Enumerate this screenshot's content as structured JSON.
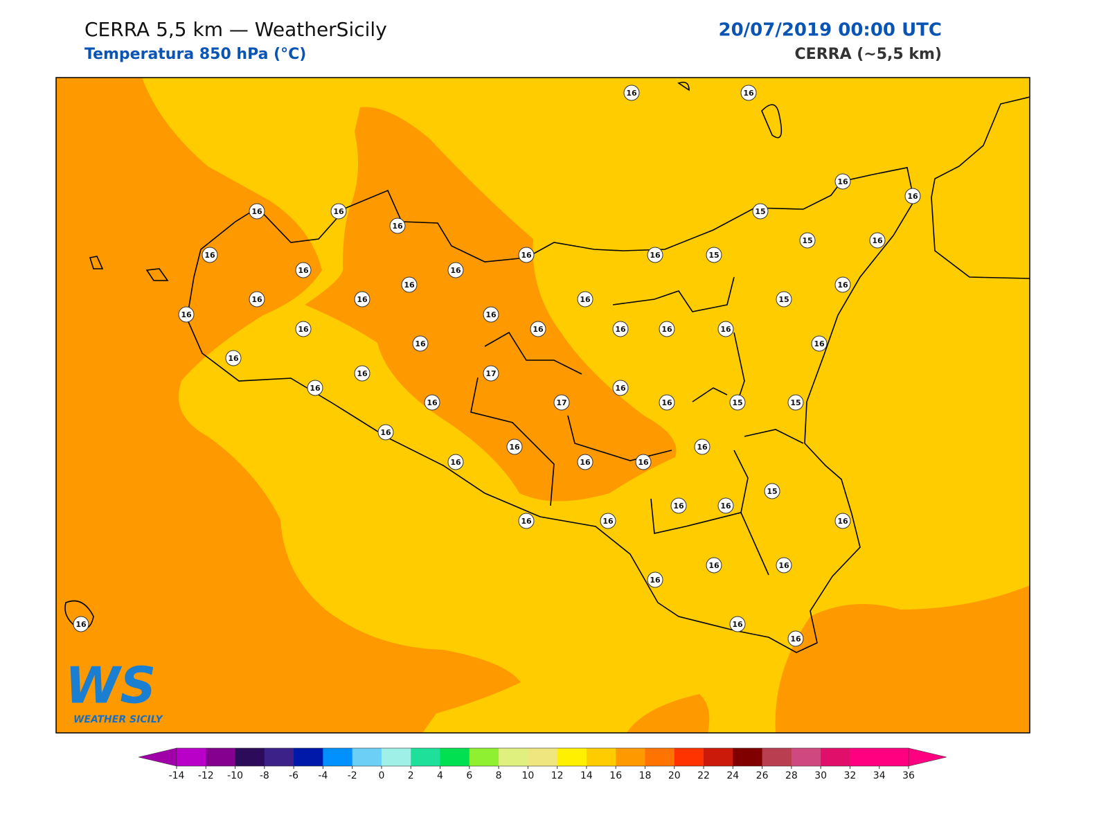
{
  "header": {
    "title": "CERRA 5,5 km — WeatherSicily",
    "subtitle": "Temperatura 850 hPa (°C)",
    "datetime": "20/07/2019 00:00 UTC",
    "model": "CERRA (~5,5 km)"
  },
  "stations": [
    16,
    16,
    16,
    16,
    16,
    16,
    16,
    15,
    15,
    16,
    16,
    16,
    16,
    15,
    16,
    16,
    16,
    16,
    16,
    16,
    16,
    15,
    16,
    16,
    16,
    16,
    16,
    16,
    16,
    16,
    16,
    16,
    17,
    16,
    16,
    16,
    16,
    17,
    16,
    15,
    15,
    16,
    16,
    16,
    16,
    16,
    16,
    15,
    16,
    16,
    16,
    16,
    16,
    16,
    16,
    16,
    16,
    16,
    16
  ],
  "colorbar": {
    "ticks": [
      -14,
      -12,
      -10,
      -8,
      -6,
      -4,
      -2,
      0,
      2,
      4,
      6,
      8,
      10,
      12,
      14,
      16,
      18,
      20,
      22,
      24,
      26,
      28,
      30,
      32,
      34,
      36
    ],
    "colors": [
      "#b800c8",
      "#86008f",
      "#2c0b5a",
      "#3b2188",
      "#0019a8",
      "#0091ff",
      "#6ccff5",
      "#9ff0e6",
      "#1ee09a",
      "#00e050",
      "#8ef030",
      "#e0f07e",
      "#f0e680",
      "#fff000",
      "#ffcc00",
      "#ff9900",
      "#ff7300",
      "#ff3300",
      "#cc1a0a",
      "#800000",
      "#b83e50",
      "#d04880",
      "#e0106a",
      "#ff0080",
      "#ff0080"
    ],
    "under_color": "#a000a8",
    "over_color": "#ff0080"
  },
  "logo": {
    "mark": "WS",
    "name": "WEATHER SICILY"
  }
}
